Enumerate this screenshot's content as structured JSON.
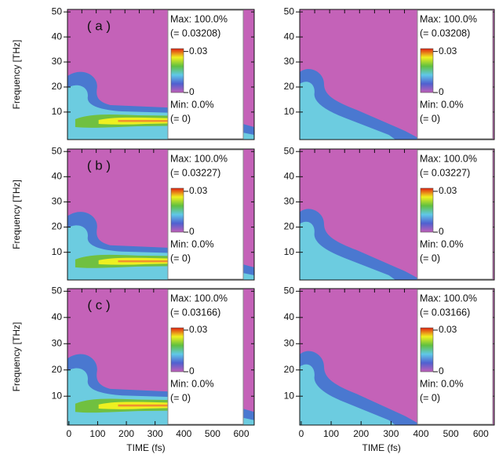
{
  "chart_data": [
    {
      "type": "heatmap",
      "panel_label": "( a )",
      "ylabel": "Frequency [THz]",
      "ylim": [
        -1,
        51
      ],
      "yticks": [
        10,
        20,
        30,
        40,
        50
      ],
      "xlim": [
        -5,
        645
      ],
      "colorbar": {
        "max_label": "Max: 100.0%",
        "max_value": "(= 0.03208)",
        "min_label": "Min: 0.0%",
        "min_value": "(= 0)",
        "clim": [
          0,
          0.03208
        ],
        "ticks": [
          0.03,
          0
        ]
      }
    },
    {
      "type": "heatmap",
      "ylim": [
        -1,
        51
      ],
      "yticks": [
        10,
        20,
        30,
        40,
        50
      ],
      "xlim": [
        -5,
        645
      ],
      "colorbar": {
        "max_label": "Max: 100.0%",
        "max_value": "(= 0.03208)",
        "min_label": "Min: 0.0%",
        "min_value": "(= 0)",
        "clim": [
          0,
          0.03208
        ],
        "ticks": [
          0.03,
          0
        ]
      }
    },
    {
      "type": "heatmap",
      "panel_label": "( b )",
      "ylabel": "Frequency [THz]",
      "ylim": [
        -1,
        51
      ],
      "yticks": [
        10,
        20,
        30,
        40,
        50
      ],
      "xlim": [
        -5,
        645
      ],
      "colorbar": {
        "max_label": "Max: 100.0%",
        "max_value": "(= 0.03227)",
        "min_label": "Min: 0.0%",
        "min_value": "(= 0)",
        "clim": [
          0,
          0.03227
        ],
        "ticks": [
          0.03,
          0
        ]
      }
    },
    {
      "type": "heatmap",
      "ylim": [
        -1,
        51
      ],
      "yticks": [
        10,
        20,
        30,
        40,
        50
      ],
      "xlim": [
        -5,
        645
      ],
      "colorbar": {
        "max_label": "Max: 100.0%",
        "max_value": "(= 0.03227)",
        "min_label": "Min: 0.0%",
        "min_value": "(= 0)",
        "clim": [
          0,
          0.03227
        ],
        "ticks": [
          0.03,
          0
        ]
      }
    },
    {
      "type": "heatmap",
      "panel_label": "( c )",
      "ylabel": "Frequency [THz]",
      "xlabel": "TIME (fs)",
      "ylim": [
        -1,
        51
      ],
      "yticks": [
        10,
        20,
        30,
        40,
        50
      ],
      "xlim": [
        -5,
        645
      ],
      "xticks": [
        0,
        100,
        200,
        300,
        400,
        500,
        600
      ],
      "colorbar": {
        "max_label": "Max: 100.0%",
        "max_value": "(= 0.03166)",
        "min_label": "Min: 0.0%",
        "min_value": "(= 0)",
        "clim": [
          0,
          0.03166
        ],
        "ticks": [
          0.03,
          0
        ]
      }
    },
    {
      "type": "heatmap",
      "xlabel": "TIME (fs)",
      "ylim": [
        -1,
        51
      ],
      "yticks": [
        10,
        20,
        30,
        40,
        50
      ],
      "xlim": [
        -5,
        645
      ],
      "xticks": [
        0,
        100,
        200,
        300,
        400,
        500,
        600
      ],
      "colorbar": {
        "max_label": "Max: 100.0%",
        "max_value": "(= 0.03166)",
        "min_label": "Min: 0.0%",
        "min_value": "(= 0)",
        "clim": [
          0,
          0.03166
        ],
        "ticks": [
          0.03,
          0
        ]
      }
    }
  ]
}
